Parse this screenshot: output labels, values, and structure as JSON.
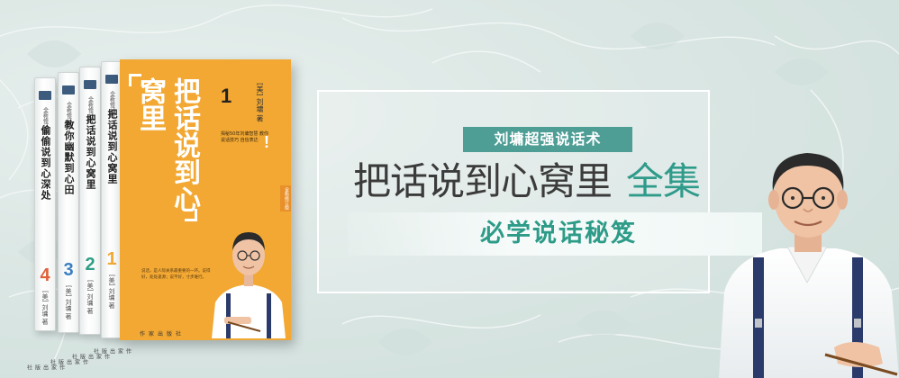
{
  "banner": {
    "series_tag": "刘墉超强说话术",
    "headline_main": "把话说到心窝里",
    "headline_accent": "全集",
    "subline": "必学说话秘笈"
  },
  "books": {
    "spines": [
      {
        "series": "全新修订版",
        "title": "偷偷说到心深处",
        "number": "4",
        "number_color": "#e0603a",
        "author": "[美] 刘墉 著",
        "publisher": "作家出版社"
      },
      {
        "series": "全新修订版",
        "title": "教你幽默到心田",
        "number": "3",
        "number_color": "#3a7fc0",
        "author": "[美] 刘墉 著",
        "publisher": "作家出版社"
      },
      {
        "series": "全新修订版",
        "title": "把话说到心窝里",
        "number": "2",
        "number_color": "#2e9e86",
        "author": "[美] 刘墉 著",
        "publisher": "作家出版社"
      },
      {
        "series": "全新修订版",
        "title": "把话说到心窝里",
        "number": "1",
        "number_color": "#f2a833",
        "author": "[美] 刘墉 著",
        "publisher": "作家出版社"
      }
    ],
    "cover": {
      "title": "把话说到心窝里",
      "number": "1",
      "author": "[美] 刘墉 著",
      "blurb": "揭秘50年刘墉智慧 教你说话技巧 自信表达",
      "blurb_mark": "!",
      "tag": "全新修订版",
      "quote": "说话，是人际关系最重要的一环。说得好，处处逢源；说不好，寸步难行。",
      "publisher": "作家出版社"
    }
  },
  "colors": {
    "cover": "#f2a833",
    "accent": "#2f9b8a",
    "tag_bg": "#4f9e96",
    "headline": "#3b3b3b",
    "background": "#dfe9e7"
  }
}
